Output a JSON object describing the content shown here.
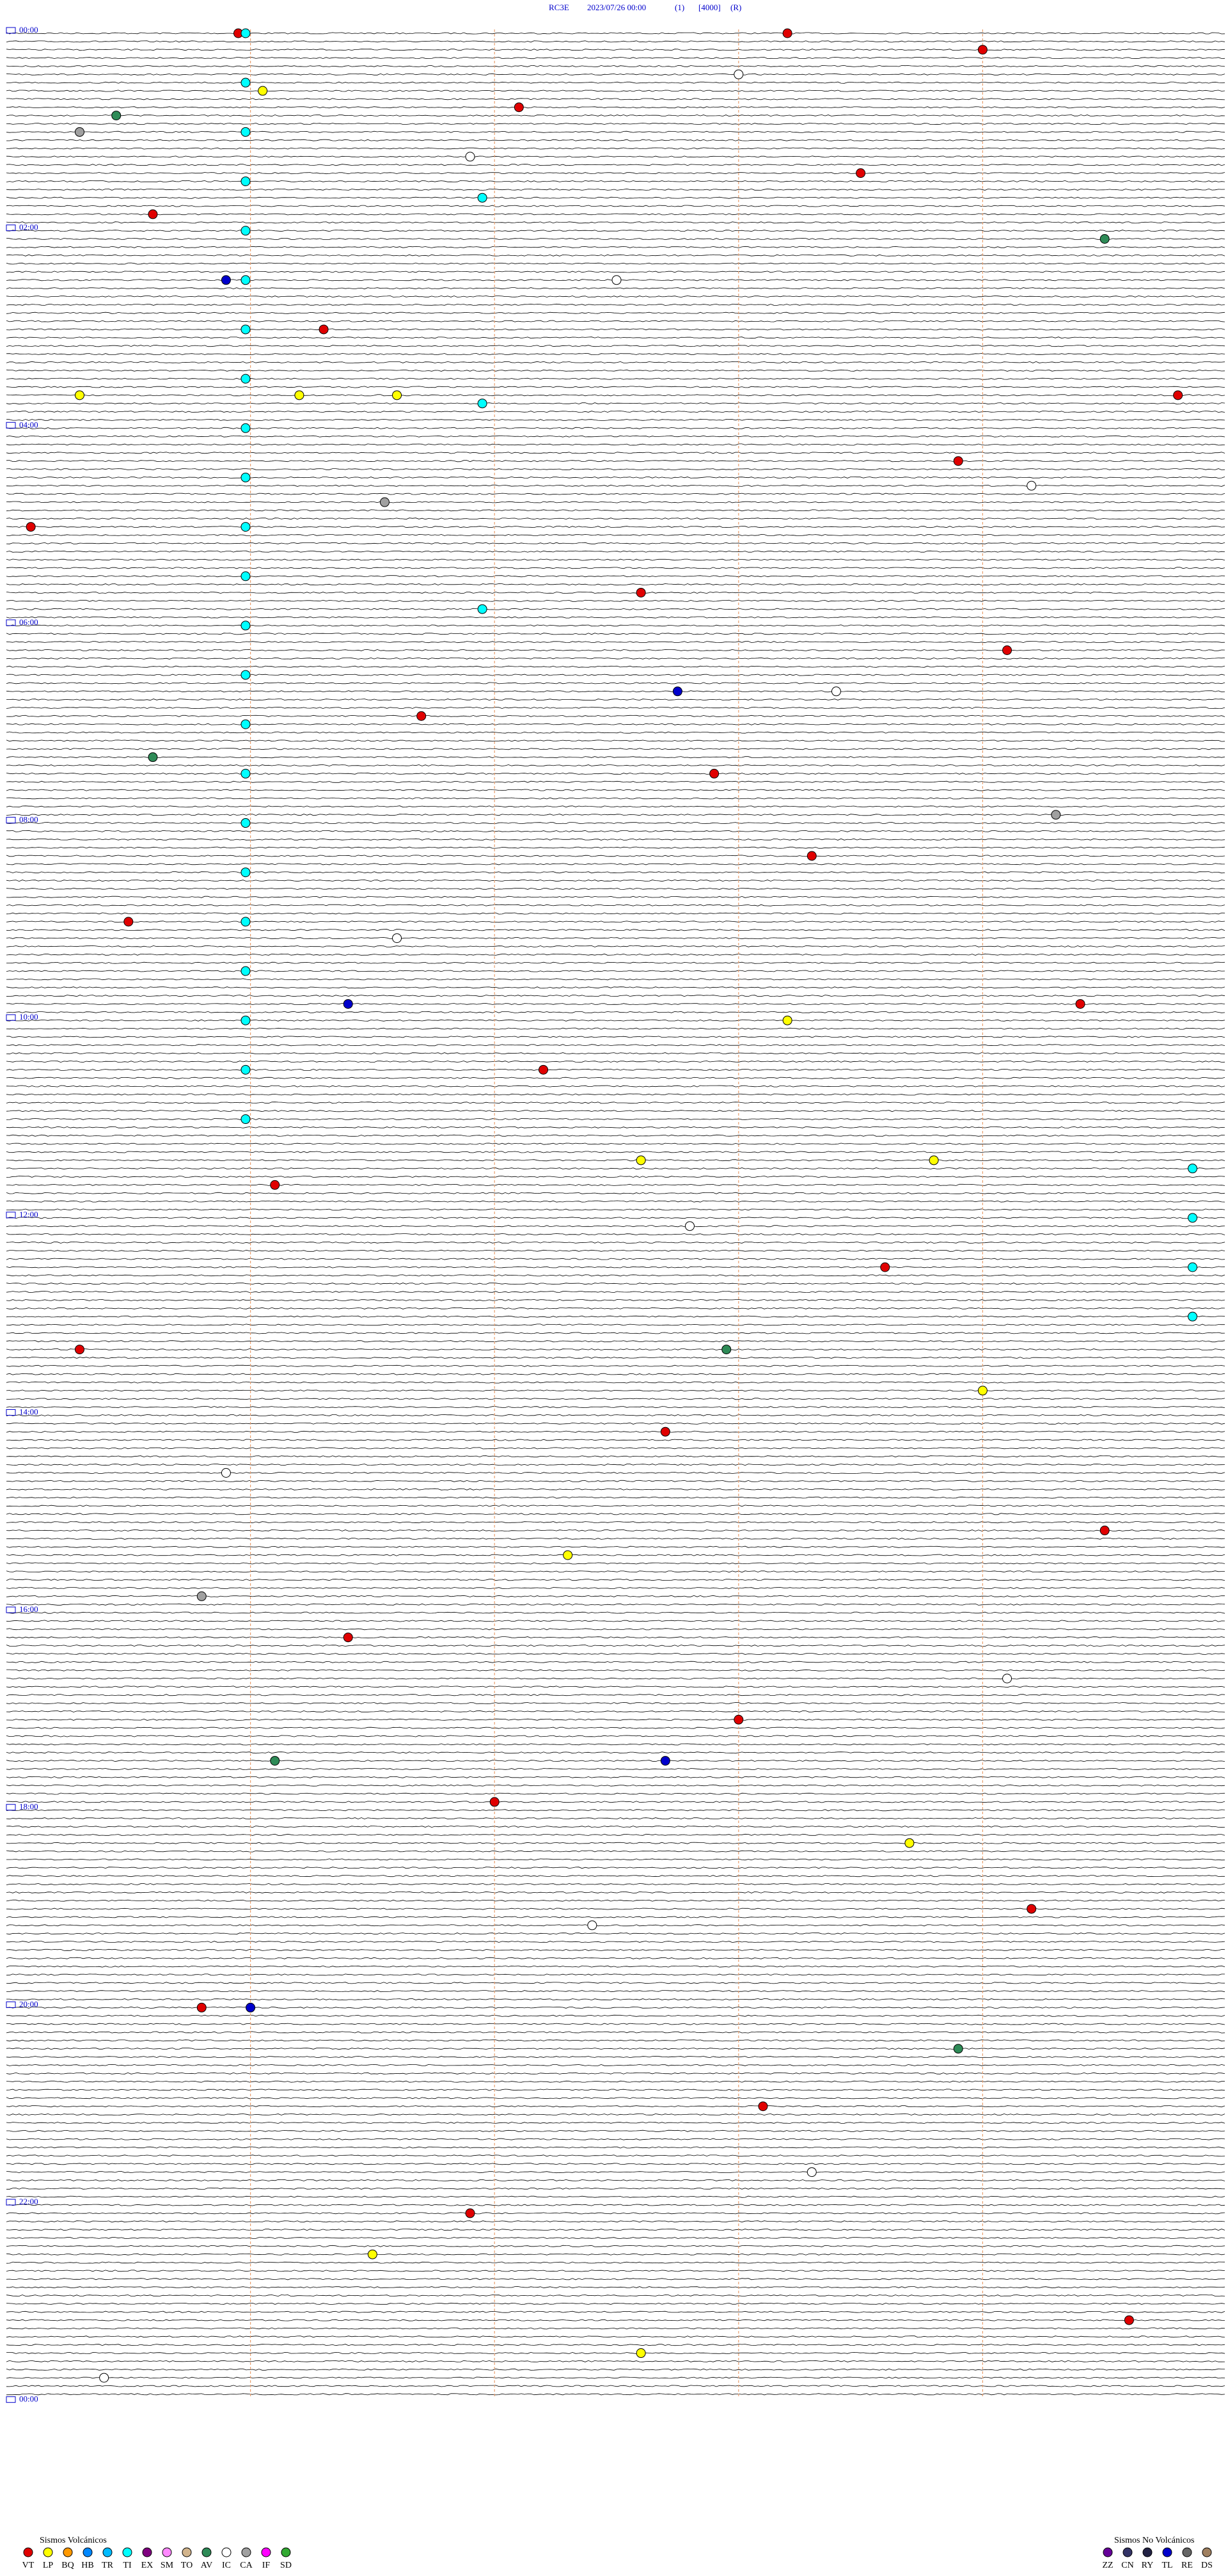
{
  "header": {
    "station": "RC3E",
    "datetime": "2023/07/26 00:00",
    "channel": "(1)",
    "scale": "[4000]",
    "mode": "(R)"
  },
  "hour_labels": [
    "00:00",
    "02:00",
    "04:00",
    "06:00",
    "08:00",
    "10:00",
    "12:00",
    "14:00",
    "16:00",
    "18:00",
    "20:00",
    "22:00",
    "00:00"
  ],
  "legend_volcanic": {
    "title": "Sismos Volcánicos",
    "items": [
      {
        "code": "VT",
        "color": "#e00000"
      },
      {
        "code": "LP",
        "color": "#ffff00"
      },
      {
        "code": "BQ",
        "color": "#ff9900"
      },
      {
        "code": "HB",
        "color": "#0088ff"
      },
      {
        "code": "TR",
        "color": "#00bbff"
      },
      {
        "code": "TI",
        "color": "#00ffff"
      },
      {
        "code": "EX",
        "color": "#800080"
      },
      {
        "code": "SM",
        "color": "#ff88ff"
      },
      {
        "code": "TO",
        "color": "#d2b48c"
      },
      {
        "code": "AV",
        "color": "#2e8b57"
      },
      {
        "code": "IC",
        "color": "#ffffff"
      },
      {
        "code": "CA",
        "color": "#a0a0a0"
      },
      {
        "code": "IF",
        "color": "#ff00ff"
      },
      {
        "code": "SD",
        "color": "#33aa33"
      }
    ]
  },
  "legend_non_volcanic": {
    "title": "Sismos No Volcánicos",
    "items": [
      {
        "code": "ZZ",
        "color": "#660099"
      },
      {
        "code": "CN",
        "color": "#333366"
      },
      {
        "code": "RY",
        "color": "#222244"
      },
      {
        "code": "TL",
        "color": "#0000cc"
      },
      {
        "code": "RE",
        "color": "#666666"
      },
      {
        "code": "DS",
        "color": "#a08060"
      }
    ]
  },
  "events": [
    {
      "type": "VT",
      "row": 0,
      "minute": 0.95
    },
    {
      "type": "VT",
      "row": 0,
      "minute": 3.2
    },
    {
      "type": "VT",
      "row": 2,
      "minute": 4.0
    },
    {
      "type": "VT",
      "row": 9,
      "minute": 2.1
    },
    {
      "type": "VT",
      "row": 17,
      "minute": 3.5
    },
    {
      "type": "VT",
      "row": 22,
      "minute": 0.6
    },
    {
      "type": "VT",
      "row": 36,
      "minute": 1.3
    },
    {
      "type": "VT",
      "row": 44,
      "minute": 4.8
    },
    {
      "type": "VT",
      "row": 52,
      "minute": 3.9
    },
    {
      "type": "VT",
      "row": 60,
      "minute": 0.1
    },
    {
      "type": "VT",
      "row": 68,
      "minute": 2.6
    },
    {
      "type": "VT",
      "row": 75,
      "minute": 4.1
    },
    {
      "type": "VT",
      "row": 83,
      "minute": 1.7
    },
    {
      "type": "VT",
      "row": 90,
      "minute": 2.9
    },
    {
      "type": "VT",
      "row": 100,
      "minute": 3.3
    },
    {
      "type": "VT",
      "row": 108,
      "minute": 0.5
    },
    {
      "type": "VT",
      "row": 118,
      "minute": 4.4
    },
    {
      "type": "VT",
      "row": 126,
      "minute": 2.2
    },
    {
      "type": "VT",
      "row": 140,
      "minute": 1.1
    },
    {
      "type": "VT",
      "row": 150,
      "minute": 3.6
    },
    {
      "type": "VT",
      "row": 160,
      "minute": 0.3
    },
    {
      "type": "VT",
      "row": 170,
      "minute": 2.7
    },
    {
      "type": "VT",
      "row": 182,
      "minute": 4.5
    },
    {
      "type": "VT",
      "row": 195,
      "minute": 1.4
    },
    {
      "type": "VT",
      "row": 205,
      "minute": 3.0
    },
    {
      "type": "VT",
      "row": 215,
      "minute": 2.0
    },
    {
      "type": "VT",
      "row": 228,
      "minute": 4.2
    },
    {
      "type": "VT",
      "row": 240,
      "minute": 0.8
    },
    {
      "type": "VT",
      "row": 252,
      "minute": 3.1
    },
    {
      "type": "VT",
      "row": 265,
      "minute": 1.9
    },
    {
      "type": "VT",
      "row": 278,
      "minute": 4.6
    },
    {
      "type": "LP",
      "row": 7,
      "minute": 1.05
    },
    {
      "type": "LP",
      "row": 44,
      "minute": 0.3
    },
    {
      "type": "LP",
      "row": 44,
      "minute": 1.2
    },
    {
      "type": "LP",
      "row": 44,
      "minute": 1.6
    },
    {
      "type": "LP",
      "row": 120,
      "minute": 3.2
    },
    {
      "type": "LP",
      "row": 137,
      "minute": 2.6
    },
    {
      "type": "LP",
      "row": 137,
      "minute": 3.8
    },
    {
      "type": "LP",
      "row": 165,
      "minute": 4.0
    },
    {
      "type": "LP",
      "row": 185,
      "minute": 2.3
    },
    {
      "type": "LP",
      "row": 220,
      "minute": 3.7
    },
    {
      "type": "LP",
      "row": 270,
      "minute": 1.5
    },
    {
      "type": "LP",
      "row": 282,
      "minute": 2.6
    },
    {
      "type": "IC",
      "row": 5,
      "minute": 3.0
    },
    {
      "type": "IC",
      "row": 15,
      "minute": 1.9
    },
    {
      "type": "IC",
      "row": 30,
      "minute": 2.5
    },
    {
      "type": "IC",
      "row": 55,
      "minute": 4.2
    },
    {
      "type": "IC",
      "row": 80,
      "minute": 3.4
    },
    {
      "type": "IC",
      "row": 110,
      "minute": 1.6
    },
    {
      "type": "IC",
      "row": 145,
      "minute": 2.8
    },
    {
      "type": "IC",
      "row": 175,
      "minute": 0.9
    },
    {
      "type": "IC",
      "row": 200,
      "minute": 4.1
    },
    {
      "type": "IC",
      "row": 230,
      "minute": 2.4
    },
    {
      "type": "IC",
      "row": 260,
      "minute": 3.3
    },
    {
      "type": "IC",
      "row": 285,
      "minute": 0.4
    },
    {
      "type": "TI",
      "row": 0,
      "minute": 0.98
    },
    {
      "type": "TI",
      "row": 6,
      "minute": 0.98
    },
    {
      "type": "TI",
      "row": 12,
      "minute": 0.98
    },
    {
      "type": "TI",
      "row": 18,
      "minute": 0.98
    },
    {
      "type": "TI",
      "row": 24,
      "minute": 0.98
    },
    {
      "type": "TI",
      "row": 30,
      "minute": 0.98
    },
    {
      "type": "TI",
      "row": 36,
      "minute": 0.98
    },
    {
      "type": "TI",
      "row": 42,
      "minute": 0.98
    },
    {
      "type": "TI",
      "row": 48,
      "minute": 0.98
    },
    {
      "type": "TI",
      "row": 54,
      "minute": 0.98
    },
    {
      "type": "TI",
      "row": 60,
      "minute": 0.98
    },
    {
      "type": "TI",
      "row": 66,
      "minute": 0.98
    },
    {
      "type": "TI",
      "row": 72,
      "minute": 0.98
    },
    {
      "type": "TI",
      "row": 78,
      "minute": 0.98
    },
    {
      "type": "TI",
      "row": 84,
      "minute": 0.98
    },
    {
      "type": "TI",
      "row": 90,
      "minute": 0.98
    },
    {
      "type": "TI",
      "row": 96,
      "minute": 0.98
    },
    {
      "type": "TI",
      "row": 102,
      "minute": 0.98
    },
    {
      "type": "TI",
      "row": 108,
      "minute": 0.98
    },
    {
      "type": "TI",
      "row": 114,
      "minute": 0.98
    },
    {
      "type": "TI",
      "row": 120,
      "minute": 0.98
    },
    {
      "type": "TI",
      "row": 126,
      "minute": 0.98
    },
    {
      "type": "TI",
      "row": 132,
      "minute": 0.98
    },
    {
      "type": "TI",
      "row": 138,
      "minute": 4.86
    },
    {
      "type": "TI",
      "row": 144,
      "minute": 4.86
    },
    {
      "type": "TI",
      "row": 150,
      "minute": 4.86
    },
    {
      "type": "TI",
      "row": 156,
      "minute": 4.86
    },
    {
      "type": "TI",
      "row": 20,
      "minute": 1.95
    },
    {
      "type": "TI",
      "row": 45,
      "minute": 1.95
    },
    {
      "type": "TI",
      "row": 70,
      "minute": 1.95
    },
    {
      "type": "AV",
      "row": 10,
      "minute": 0.45
    },
    {
      "type": "AV",
      "row": 25,
      "minute": 4.5
    },
    {
      "type": "AV",
      "row": 88,
      "minute": 0.6
    },
    {
      "type": "AV",
      "row": 160,
      "minute": 2.95
    },
    {
      "type": "AV",
      "row": 210,
      "minute": 1.1
    },
    {
      "type": "AV",
      "row": 245,
      "minute": 3.9
    },
    {
      "type": "TL",
      "row": 30,
      "minute": 0.9
    },
    {
      "type": "TL",
      "row": 80,
      "minute": 2.75
    },
    {
      "type": "TL",
      "row": 118,
      "minute": 1.4
    },
    {
      "type": "TL",
      "row": 210,
      "minute": 2.7
    },
    {
      "type": "TL",
      "row": 240,
      "minute": 1.0
    },
    {
      "type": "CA",
      "row": 12,
      "minute": 0.3
    },
    {
      "type": "CA",
      "row": 57,
      "minute": 1.55
    },
    {
      "type": "CA",
      "row": 95,
      "minute": 4.3
    },
    {
      "type": "CA",
      "row": 190,
      "minute": 0.8
    }
  ]
}
